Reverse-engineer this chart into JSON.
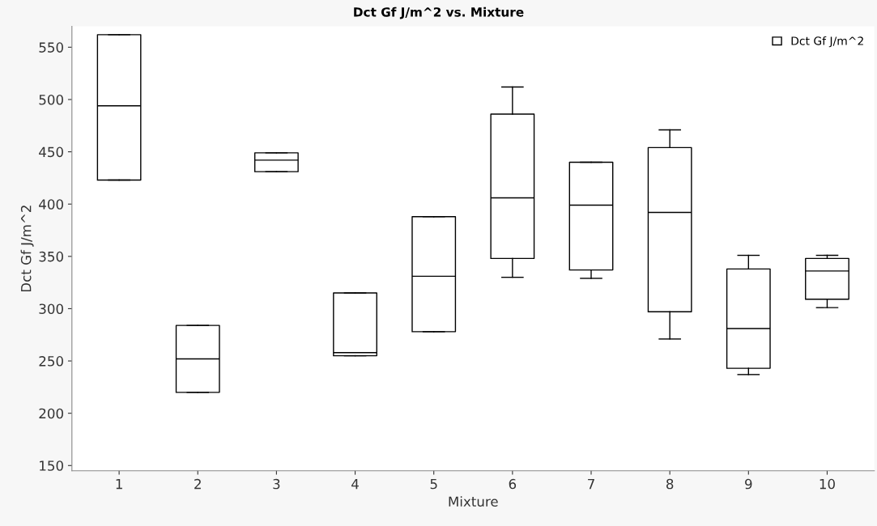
{
  "chart_data": {
    "type": "box",
    "title": "Dct Gf J/m^2 vs. Mixture",
    "xlabel": "Mixture",
    "ylabel": "Dct Gf J/m^2",
    "categories": [
      "1",
      "2",
      "3",
      "4",
      "5",
      "6",
      "7",
      "8",
      "9",
      "10"
    ],
    "series": [
      {
        "name": "Dct Gf J/m^2",
        "color": "#000000",
        "boxes": [
          {
            "low": 423,
            "q1": 423,
            "median": 494,
            "q3": 562,
            "high": 562
          },
          {
            "low": 220,
            "q1": 220,
            "median": 252,
            "q3": 284,
            "high": 284
          },
          {
            "low": 431,
            "q1": 431,
            "median": 442,
            "q3": 449,
            "high": 449
          },
          {
            "low": 255,
            "q1": 255,
            "median": 258,
            "q3": 315,
            "high": 315
          },
          {
            "low": 278,
            "q1": 278,
            "median": 331,
            "q3": 388,
            "high": 388
          },
          {
            "low": 330,
            "q1": 348,
            "median": 406,
            "q3": 486,
            "high": 512
          },
          {
            "low": 329,
            "q1": 337,
            "median": 399,
            "q3": 440,
            "high": 440
          },
          {
            "low": 271,
            "q1": 297,
            "median": 392,
            "q3": 454,
            "high": 471
          },
          {
            "low": 237,
            "q1": 243,
            "median": 281,
            "q3": 338,
            "high": 351
          },
          {
            "low": 301,
            "q1": 309,
            "median": 336,
            "q3": 348,
            "high": 351
          }
        ]
      }
    ],
    "ylim": [
      145,
      570
    ],
    "yticks": [
      150,
      200,
      250,
      300,
      350,
      400,
      450,
      500,
      550
    ],
    "grid": false,
    "legend": "top right"
  }
}
